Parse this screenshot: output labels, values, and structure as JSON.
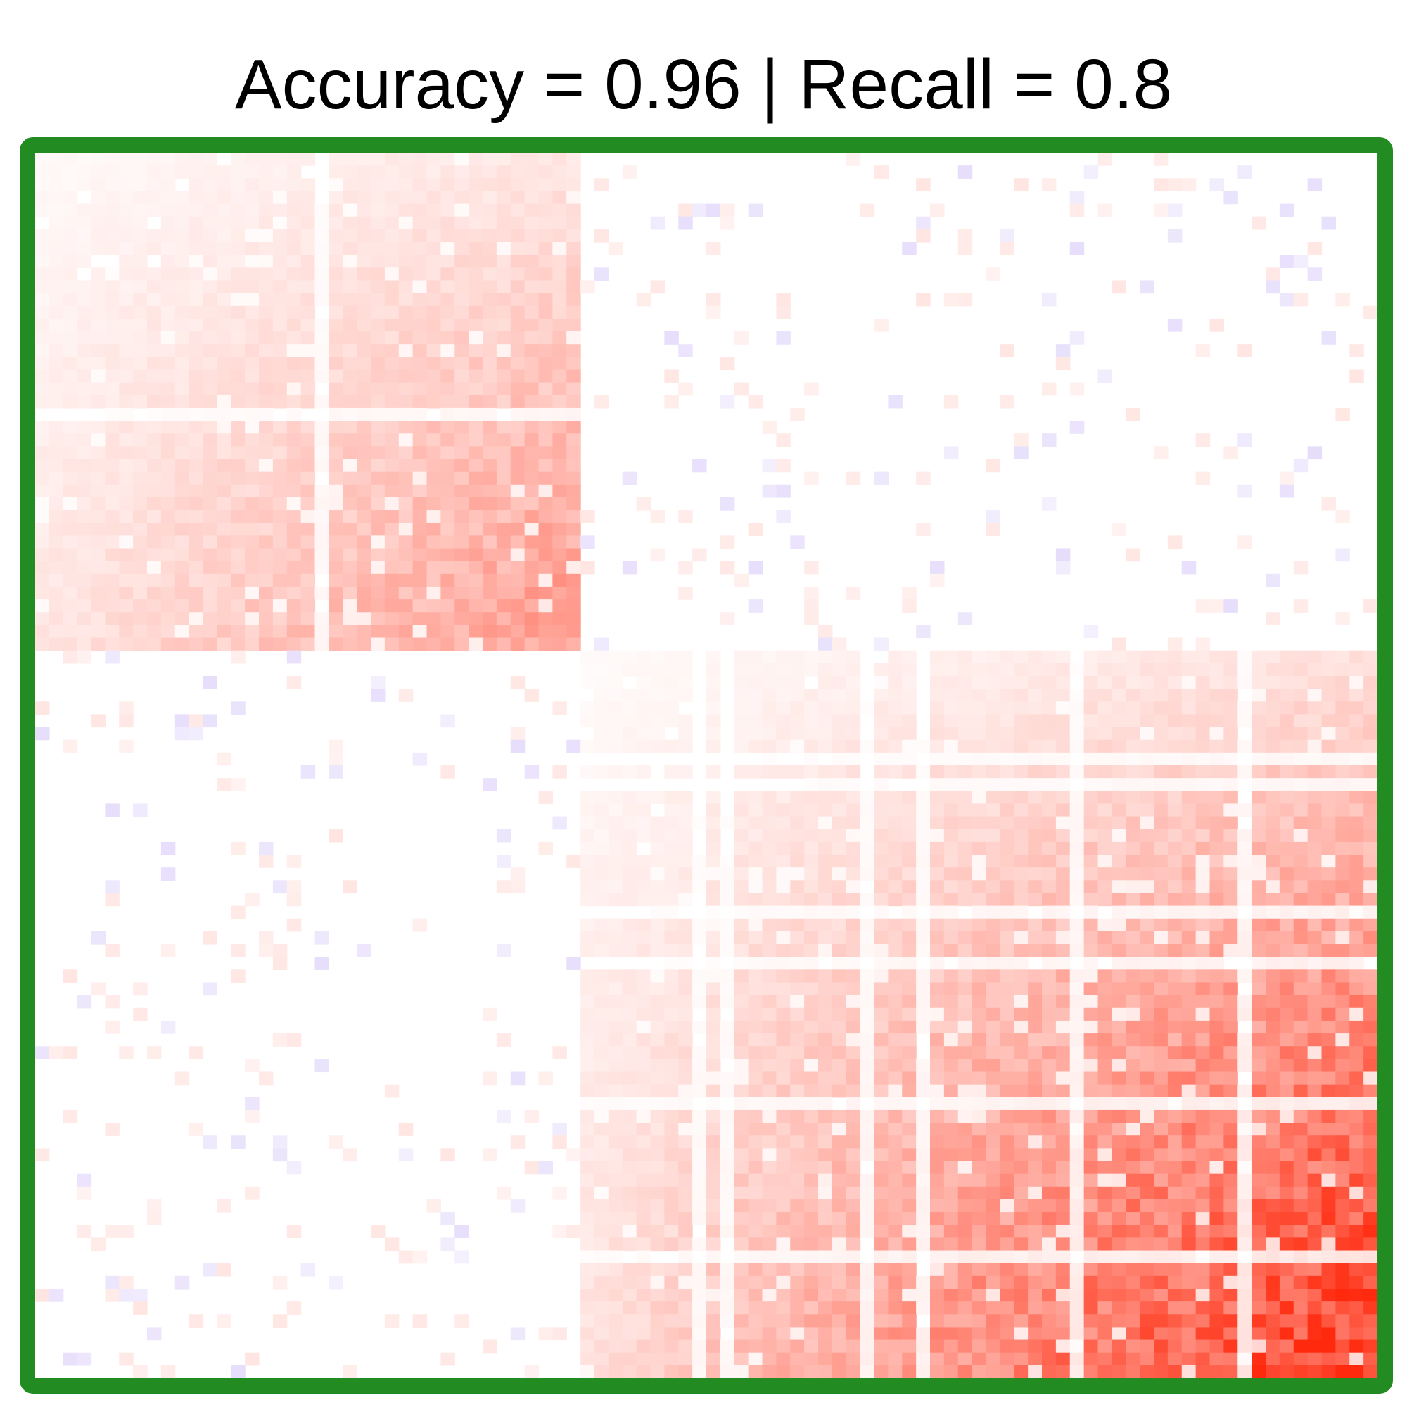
{
  "chart_data": {
    "type": "heatmap",
    "title": "Accuracy = 0.96 | Recall = 0.8",
    "matrix_size": 96,
    "groups": [
      {
        "name": "",
        "start": 0,
        "end": 39
      },
      {
        "name": "",
        "start": 39,
        "end": 96
      }
    ],
    "value_range": [
      -0.25,
      1
    ],
    "diagonal_peak": {
      "first_block": 0.5,
      "second_block": 1.0
    },
    "colors": {
      "positive": "#ff2a0e",
      "negative": "#9a78f0",
      "background": "#ffffff",
      "frame": "#228b22"
    },
    "grid": false,
    "legend": "none"
  }
}
